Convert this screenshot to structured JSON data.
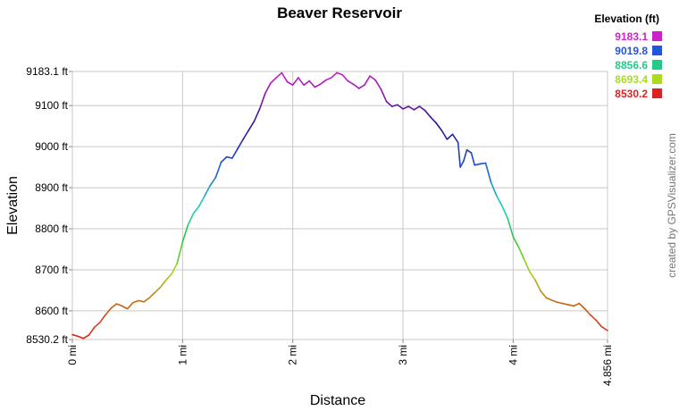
{
  "chart_data": {
    "type": "line",
    "title": "Beaver Reservoir",
    "xlabel": "Distance",
    "ylabel": "Elevation",
    "xlim": [
      0,
      4.856
    ],
    "ylim": [
      8530.2,
      9183.1
    ],
    "x_ticks": [
      {
        "value": 0,
        "label": "0 mi"
      },
      {
        "value": 1,
        "label": "1 mi"
      },
      {
        "value": 2,
        "label": "2 mi"
      },
      {
        "value": 3,
        "label": "3 mi"
      },
      {
        "value": 4,
        "label": "4 mi"
      },
      {
        "value": 4.856,
        "label": "4.856 mi"
      }
    ],
    "y_ticks": [
      {
        "value": 8530.2,
        "label": "8530.2 ft"
      },
      {
        "value": 8600,
        "label": "8600 ft"
      },
      {
        "value": 8700,
        "label": "8700 ft"
      },
      {
        "value": 8800,
        "label": "8800 ft"
      },
      {
        "value": 8900,
        "label": "8900 ft"
      },
      {
        "value": 9000,
        "label": "9000 ft"
      },
      {
        "value": 9100,
        "label": "9100 ft"
      },
      {
        "value": 9183.1,
        "label": "9183.1 ft"
      }
    ],
    "grid": true,
    "legend": {
      "title": "Elevation (ft)",
      "placement": "top-right",
      "entries": [
        {
          "label": "9183.1",
          "color": "#cc22cc"
        },
        {
          "label": "9019.8",
          "color": "#2255dd"
        },
        {
          "label": "8856.6",
          "color": "#22cc88"
        },
        {
          "label": "8693.4",
          "color": "#aadd22"
        },
        {
          "label": "8530.2",
          "color": "#dd2222"
        }
      ]
    },
    "series": [
      {
        "points": [
          [
            0.0,
            8542
          ],
          [
            0.05,
            8538
          ],
          [
            0.1,
            8533
          ],
          [
            0.15,
            8541
          ],
          [
            0.2,
            8560
          ],
          [
            0.25,
            8572
          ],
          [
            0.3,
            8590
          ],
          [
            0.35,
            8606
          ],
          [
            0.4,
            8617
          ],
          [
            0.45,
            8612
          ],
          [
            0.5,
            8605
          ],
          [
            0.55,
            8620
          ],
          [
            0.6,
            8625
          ],
          [
            0.65,
            8622
          ],
          [
            0.7,
            8632
          ],
          [
            0.75,
            8645
          ],
          [
            0.8,
            8658
          ],
          [
            0.85,
            8675
          ],
          [
            0.9,
            8690
          ],
          [
            0.95,
            8715
          ],
          [
            1.0,
            8768
          ],
          [
            1.05,
            8810
          ],
          [
            1.1,
            8838
          ],
          [
            1.15,
            8855
          ],
          [
            1.2,
            8880
          ],
          [
            1.25,
            8905
          ],
          [
            1.3,
            8925
          ],
          [
            1.35,
            8962
          ],
          [
            1.4,
            8975
          ],
          [
            1.45,
            8972
          ],
          [
            1.5,
            8995
          ],
          [
            1.55,
            9018
          ],
          [
            1.6,
            9040
          ],
          [
            1.65,
            9062
          ],
          [
            1.7,
            9092
          ],
          [
            1.75,
            9130
          ],
          [
            1.8,
            9155
          ],
          [
            1.85,
            9168
          ],
          [
            1.9,
            9180
          ],
          [
            1.95,
            9158
          ],
          [
            2.0,
            9150
          ],
          [
            2.05,
            9168
          ],
          [
            2.1,
            9150
          ],
          [
            2.15,
            9160
          ],
          [
            2.2,
            9145
          ],
          [
            2.25,
            9152
          ],
          [
            2.3,
            9162
          ],
          [
            2.35,
            9168
          ],
          [
            2.4,
            9180
          ],
          [
            2.45,
            9175
          ],
          [
            2.5,
            9160
          ],
          [
            2.55,
            9152
          ],
          [
            2.6,
            9142
          ],
          [
            2.65,
            9150
          ],
          [
            2.7,
            9172
          ],
          [
            2.75,
            9162
          ],
          [
            2.8,
            9140
          ],
          [
            2.85,
            9110
          ],
          [
            2.9,
            9098
          ],
          [
            2.95,
            9102
          ],
          [
            3.0,
            9092
          ],
          [
            3.05,
            9098
          ],
          [
            3.1,
            9090
          ],
          [
            3.15,
            9098
          ],
          [
            3.2,
            9088
          ],
          [
            3.25,
            9072
          ],
          [
            3.3,
            9058
          ],
          [
            3.35,
            9040
          ],
          [
            3.4,
            9018
          ],
          [
            3.45,
            9030
          ],
          [
            3.5,
            9010
          ],
          [
            3.52,
            8950
          ],
          [
            3.55,
            8965
          ],
          [
            3.58,
            8992
          ],
          [
            3.62,
            8985
          ],
          [
            3.65,
            8955
          ],
          [
            3.7,
            8958
          ],
          [
            3.75,
            8960
          ],
          [
            3.8,
            8912
          ],
          [
            3.85,
            8880
          ],
          [
            3.9,
            8855
          ],
          [
            3.95,
            8825
          ],
          [
            4.0,
            8780
          ],
          [
            4.05,
            8755
          ],
          [
            4.1,
            8725
          ],
          [
            4.15,
            8695
          ],
          [
            4.2,
            8675
          ],
          [
            4.25,
            8648
          ],
          [
            4.3,
            8632
          ],
          [
            4.35,
            8626
          ],
          [
            4.4,
            8621
          ],
          [
            4.45,
            8618
          ],
          [
            4.5,
            8615
          ],
          [
            4.55,
            8612
          ],
          [
            4.6,
            8618
          ],
          [
            4.65,
            8605
          ],
          [
            4.7,
            8590
          ],
          [
            4.75,
            8578
          ],
          [
            4.8,
            8562
          ],
          [
            4.856,
            8552
          ]
        ]
      }
    ]
  },
  "credit": "created by GPSVisualizer.com"
}
